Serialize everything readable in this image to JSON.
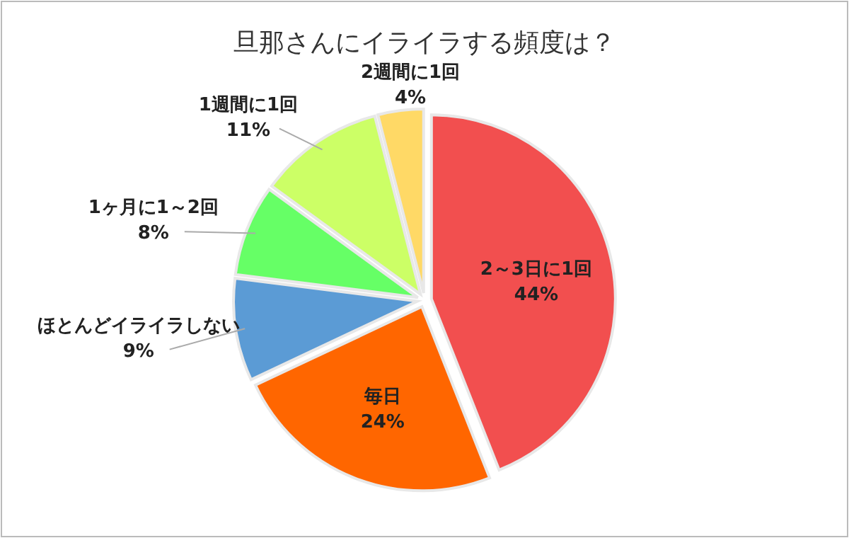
{
  "chart_data": {
    "type": "pie",
    "title": "旦那さんにイライラする頻度は？",
    "categories": [
      "2～3日に1回",
      "毎日",
      "ほとんどイライラしない",
      "1ヶ月に1～2回",
      "1週間に1回",
      "2週間に1回"
    ],
    "values": [
      44,
      24,
      9,
      8,
      11,
      4
    ],
    "colors": [
      "#f24f4f",
      "#ff6600",
      "#5b9bd5",
      "#66ff66",
      "#ccff66",
      "#ffd966"
    ],
    "value_labels": [
      "44%",
      "24%",
      "9%",
      "8%",
      "11%",
      "4%"
    ]
  }
}
